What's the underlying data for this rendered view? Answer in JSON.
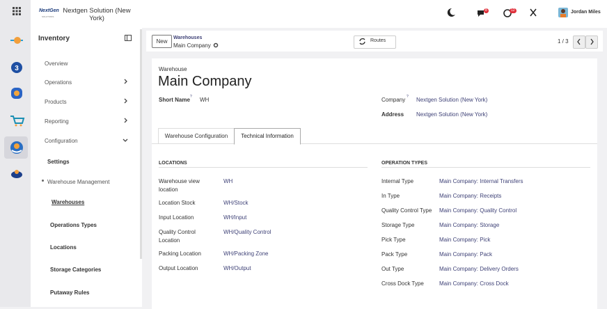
{
  "topbar": {
    "logo": "NextGen",
    "logo_sub": "SOLUTIONS",
    "company": "Nextgen Solution (New York)",
    "messages_badge": "8",
    "activities_badge": "12",
    "user": "Jordan Miles"
  },
  "sidebar": {
    "title": "Inventory",
    "menu": [
      "Overview",
      "Operations",
      "Products",
      "Reporting",
      "Configuration"
    ],
    "config_menu": [
      "Settings",
      "Warehouse Management",
      "Warehouses",
      "Operations Types",
      "Locations",
      "Storage Categories",
      "Putaway Rules"
    ]
  },
  "control_panel": {
    "new_button": "New",
    "breadcrumb": "Warehouses",
    "record": "Main Company",
    "routes_button": "Routes",
    "pager": "1 / 3"
  },
  "form": {
    "record_type": "Warehouse",
    "name": "Main Company",
    "help_mark": "?",
    "fields": [
      {
        "label": "Short Name",
        "value": "WH"
      },
      {
        "label": "Company",
        "value": "Nextgen Solution (New York)"
      },
      {
        "label": "Address",
        "value": "Nextgen Solution (New York)"
      }
    ],
    "tabs": [
      "Warehouse Configuration",
      "Technical Information"
    ],
    "locations": {
      "title": "LOCATIONS",
      "rows": [
        {
          "label": "Warehouse view location",
          "value": "WH"
        },
        {
          "label": "Location Stock",
          "value": "WH/Stock"
        },
        {
          "label": "Input Location",
          "value": "WH/Input"
        },
        {
          "label": "Quality Control Location",
          "value": "WH/Quality Control"
        },
        {
          "label": "Packing Location",
          "value": "WH/Packing Zone"
        },
        {
          "label": "Output Location",
          "value": "WH/Output"
        }
      ]
    },
    "operation_types": {
      "title": "OPERATION TYPES",
      "rows": [
        {
          "label": "Internal Type",
          "value": "Main Company: Internal Transfers"
        },
        {
          "label": "In Type",
          "value": "Main Company: Receipts"
        },
        {
          "label": "Quality Control Type",
          "value": "Main Company: Quality Control"
        },
        {
          "label": "Storage Type",
          "value": "Main Company: Storage"
        },
        {
          "label": "Pick Type",
          "value": "Main Company: Pick"
        },
        {
          "label": "Pack Type",
          "value": "Main Company: Pack"
        },
        {
          "label": "Out Type",
          "value": "Main Company: Delivery Orders"
        },
        {
          "label": "Cross Dock Type",
          "value": "Main Company: Cross Dock"
        }
      ]
    }
  }
}
